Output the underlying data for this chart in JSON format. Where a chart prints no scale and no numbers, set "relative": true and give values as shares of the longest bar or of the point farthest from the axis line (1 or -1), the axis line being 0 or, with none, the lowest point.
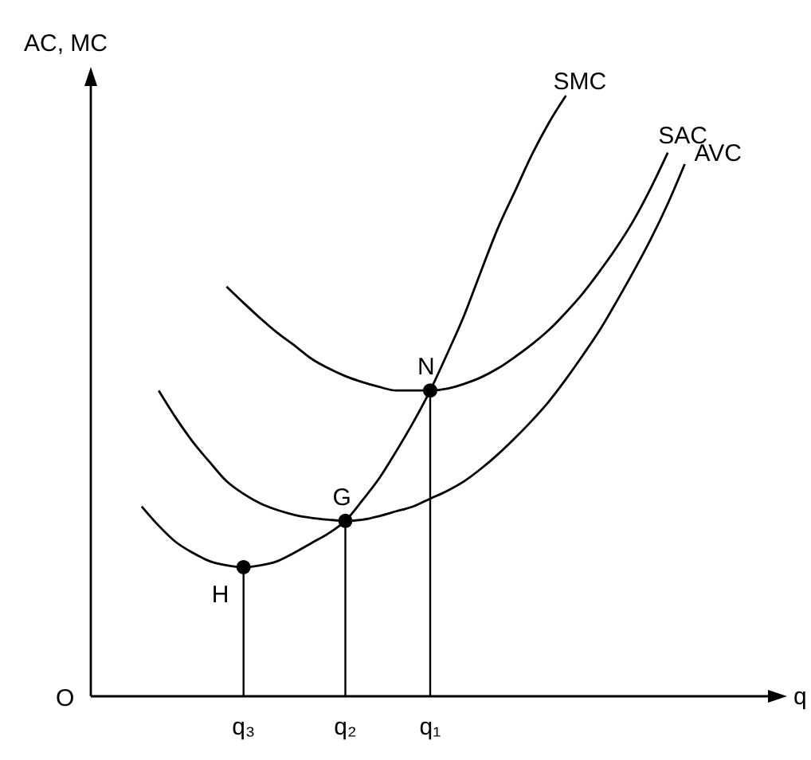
{
  "chart_data": {
    "type": "line",
    "relative": true,
    "ylabel": "AC, MC",
    "xlabel": "q",
    "marker": "none",
    "line_style": "solid",
    "categories": [
      null,
      null,
      null,
      null,
      null,
      null,
      null,
      null,
      null,
      "q₃",
      null,
      null,
      null,
      null,
      null,
      "q₂",
      null,
      null,
      null,
      null,
      "q₁",
      null,
      null,
      null,
      null,
      null,
      null,
      null,
      null,
      null,
      null,
      null,
      null,
      null,
      null,
      null,
      null,
      null,
      null,
      null,
      null,
      null
    ],
    "series": [
      {
        "name": "SMC",
        "color": "#000000",
        "values": [
          null,
          null,
          null,
          0.316,
          0.284,
          0.257,
          0.239,
          0.225,
          0.218,
          0.215,
          0.218,
          0.225,
          0.239,
          0.255,
          0.271,
          0.292,
          0.326,
          0.363,
          0.408,
          0.456,
          0.509,
          0.57,
          0.634,
          0.708,
          0.78,
          0.841,
          0.902,
          0.955,
          1.0,
          null,
          null,
          null,
          null,
          null,
          null,
          null,
          null,
          null,
          null,
          null,
          null,
          null
        ]
      },
      {
        "name": "SAC",
        "color": "#000000",
        "values": [
          null,
          null,
          null,
          null,
          null,
          null,
          null,
          null,
          0.682,
          0.655,
          0.629,
          0.605,
          0.584,
          0.562,
          0.546,
          0.533,
          0.523,
          0.515,
          0.509,
          0.509,
          0.509,
          0.512,
          0.52,
          0.531,
          0.546,
          0.565,
          0.586,
          0.61,
          0.639,
          0.671,
          0.708,
          0.748,
          0.793,
          0.846,
          0.905,
          null,
          null,
          null,
          null,
          null,
          null,
          null
        ]
      },
      {
        "name": "AVC",
        "color": "#000000",
        "values": [
          null,
          null,
          null,
          null,
          0.509,
          0.464,
          0.424,
          0.39,
          0.358,
          0.337,
          0.321,
          0.31,
          0.302,
          0.297,
          0.294,
          0.292,
          0.294,
          0.3,
          0.308,
          0.316,
          0.329,
          0.342,
          0.358,
          0.379,
          0.403,
          0.43,
          0.459,
          0.491,
          0.528,
          0.568,
          0.61,
          0.658,
          0.708,
          0.761,
          0.82,
          0.886,
          null,
          null,
          null,
          null,
          null,
          null
        ]
      }
    ],
    "annotations": [
      "O",
      {
        "text": "H",
        "x": "q₃",
        "y": 0.215
      },
      {
        "text": "G",
        "x": "q₂",
        "y": 0.292
      },
      {
        "text": "N",
        "x": "q₁",
        "y": 0.509
      }
    ]
  }
}
